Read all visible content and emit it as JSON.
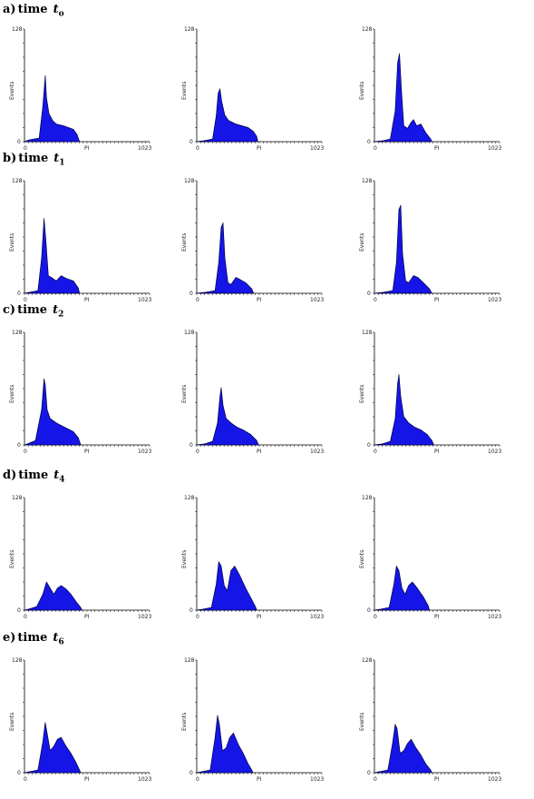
{
  "figure": {
    "ylabel": "Events",
    "xlabel": "PI",
    "y_top_tick": "128",
    "y_zero_tick": "0",
    "x_zero_tick": "0",
    "x_max_tick": "1023",
    "fill_color": "#1515e8",
    "edge_color": "#000044"
  },
  "rows": [
    {
      "letter": "a)",
      "time": "time",
      "t": "t",
      "sub": "o"
    },
    {
      "letter": "b)",
      "time": "time",
      "t": "t",
      "sub": "1"
    },
    {
      "letter": "c)",
      "time": "time",
      "t": "t",
      "sub": "2"
    },
    {
      "letter": "d)",
      "time": "time",
      "t": "t",
      "sub": "4"
    },
    {
      "letter": "e)",
      "time": "time",
      "t": "t",
      "sub": "6"
    }
  ],
  "chart_data": [
    {
      "type": "area",
      "row": 0,
      "col": 0,
      "xlim": [
        0,
        1023
      ],
      "ylim": [
        0,
        128
      ],
      "xlabel": "PI",
      "ylabel": "Events",
      "x": [
        0,
        40,
        120,
        150,
        170,
        180,
        200,
        230,
        260,
        320,
        400,
        430,
        450
      ],
      "y": [
        0,
        2,
        4,
        40,
        75,
        50,
        32,
        24,
        20,
        18,
        14,
        8,
        0
      ]
    },
    {
      "type": "area",
      "row": 0,
      "col": 1,
      "xlim": [
        0,
        1023
      ],
      "ylim": [
        0,
        128
      ],
      "xlabel": "PI",
      "ylabel": "Events",
      "x": [
        0,
        60,
        130,
        160,
        175,
        190,
        205,
        230,
        260,
        320,
        420,
        460,
        490,
        500
      ],
      "y": [
        0,
        1,
        3,
        30,
        55,
        60,
        45,
        30,
        24,
        20,
        16,
        12,
        6,
        0
      ]
    },
    {
      "type": "area",
      "row": 0,
      "col": 2,
      "xlim": [
        0,
        1023
      ],
      "ylim": [
        0,
        128
      ],
      "xlabel": "PI",
      "ylabel": "Events",
      "x": [
        0,
        70,
        130,
        170,
        190,
        205,
        220,
        240,
        270,
        300,
        320,
        345,
        380,
        420,
        460,
        470
      ],
      "y": [
        0,
        1,
        3,
        35,
        90,
        100,
        60,
        18,
        15,
        22,
        25,
        18,
        20,
        10,
        3,
        0
      ]
    },
    {
      "type": "area",
      "row": 1,
      "col": 0,
      "xlim": [
        0,
        1023
      ],
      "ylim": [
        0,
        128
      ],
      "xlabel": "PI",
      "ylabel": "Events",
      "x": [
        0,
        40,
        110,
        140,
        160,
        175,
        195,
        220,
        260,
        300,
        340,
        400,
        440,
        450
      ],
      "y": [
        0,
        1,
        3,
        40,
        85,
        60,
        20,
        18,
        14,
        20,
        17,
        14,
        6,
        0
      ]
    },
    {
      "type": "area",
      "row": 1,
      "col": 1,
      "xlim": [
        0,
        1023
      ],
      "ylim": [
        0,
        128
      ],
      "xlabel": "PI",
      "ylabel": "Events",
      "x": [
        0,
        70,
        150,
        180,
        200,
        215,
        230,
        255,
        280,
        320,
        350,
        400,
        450,
        465
      ],
      "y": [
        0,
        1,
        3,
        35,
        75,
        80,
        40,
        12,
        10,
        18,
        16,
        12,
        5,
        0
      ]
    },
    {
      "type": "area",
      "row": 1,
      "col": 2,
      "xlim": [
        0,
        1023
      ],
      "ylim": [
        0,
        128
      ],
      "xlabel": "PI",
      "ylabel": "Events",
      "x": [
        0,
        70,
        150,
        180,
        200,
        215,
        230,
        255,
        280,
        320,
        355,
        400,
        450,
        470
      ],
      "y": [
        0,
        1,
        3,
        35,
        95,
        100,
        45,
        14,
        12,
        20,
        18,
        12,
        5,
        0
      ]
    },
    {
      "type": "area",
      "row": 2,
      "col": 0,
      "xlim": [
        0,
        1023
      ],
      "ylim": [
        0,
        128
      ],
      "xlabel": "PI",
      "ylabel": "Events",
      "x": [
        0,
        20,
        90,
        140,
        160,
        170,
        185,
        210,
        260,
        330,
        400,
        440,
        460
      ],
      "y": [
        0,
        1,
        5,
        40,
        75,
        68,
        40,
        30,
        25,
        20,
        15,
        8,
        0
      ]
    },
    {
      "type": "area",
      "row": 2,
      "col": 1,
      "xlim": [
        0,
        1023
      ],
      "ylim": [
        0,
        128
      ],
      "xlabel": "PI",
      "ylabel": "Events",
      "x": [
        0,
        60,
        130,
        170,
        190,
        200,
        215,
        240,
        280,
        330,
        380,
        440,
        490,
        505
      ],
      "y": [
        0,
        1,
        4,
        25,
        55,
        65,
        45,
        30,
        25,
        20,
        17,
        12,
        5,
        0
      ]
    },
    {
      "type": "area",
      "row": 2,
      "col": 2,
      "xlim": [
        0,
        1023
      ],
      "ylim": [
        0,
        128
      ],
      "xlabel": "PI",
      "ylabel": "Events",
      "x": [
        0,
        60,
        130,
        170,
        190,
        200,
        215,
        240,
        280,
        330,
        380,
        430,
        470,
        485
      ],
      "y": [
        0,
        1,
        4,
        30,
        70,
        80,
        55,
        32,
        25,
        20,
        17,
        12,
        5,
        0
      ]
    },
    {
      "type": "area",
      "row": 3,
      "col": 0,
      "xlim": [
        0,
        1023
      ],
      "ylim": [
        0,
        128
      ],
      "xlabel": "PI",
      "ylabel": "Events",
      "x": [
        0,
        30,
        100,
        150,
        180,
        210,
        240,
        270,
        300,
        340,
        380,
        420,
        460,
        470
      ],
      "y": [
        0,
        1,
        4,
        18,
        32,
        25,
        18,
        25,
        28,
        24,
        18,
        10,
        3,
        0
      ]
    },
    {
      "type": "area",
      "row": 3,
      "col": 1,
      "xlim": [
        0,
        1023
      ],
      "ylim": [
        0,
        128
      ],
      "xlabel": "PI",
      "ylabel": "Events",
      "x": [
        0,
        50,
        120,
        160,
        180,
        200,
        225,
        250,
        280,
        310,
        350,
        400,
        450,
        480,
        490
      ],
      "y": [
        0,
        1,
        3,
        30,
        55,
        50,
        28,
        22,
        45,
        50,
        40,
        25,
        12,
        4,
        0
      ]
    },
    {
      "type": "area",
      "row": 3,
      "col": 2,
      "xlim": [
        0,
        1023
      ],
      "ylim": [
        0,
        128
      ],
      "xlabel": "PI",
      "ylabel": "Events",
      "x": [
        0,
        50,
        120,
        160,
        180,
        200,
        225,
        250,
        280,
        310,
        350,
        400,
        440,
        450
      ],
      "y": [
        0,
        1,
        3,
        30,
        50,
        45,
        25,
        18,
        28,
        32,
        25,
        15,
        5,
        0
      ]
    },
    {
      "type": "area",
      "row": 4,
      "col": 0,
      "xlim": [
        0,
        1023
      ],
      "ylim": [
        0,
        128
      ],
      "xlabel": "PI",
      "ylabel": "Events",
      "x": [
        0,
        40,
        110,
        150,
        170,
        185,
        210,
        240,
        270,
        300,
        340,
        380,
        420,
        450,
        460
      ],
      "y": [
        0,
        1,
        3,
        35,
        57,
        45,
        25,
        30,
        38,
        40,
        30,
        22,
        12,
        3,
        0
      ]
    },
    {
      "type": "area",
      "row": 4,
      "col": 1,
      "xlim": [
        0,
        1023
      ],
      "ylim": [
        0,
        128
      ],
      "xlabel": "PI",
      "ylabel": "Events",
      "x": [
        0,
        40,
        110,
        150,
        170,
        185,
        210,
        240,
        270,
        300,
        340,
        380,
        420,
        450,
        460
      ],
      "y": [
        0,
        1,
        3,
        40,
        65,
        55,
        25,
        28,
        40,
        45,
        32,
        22,
        10,
        3,
        0
      ]
    },
    {
      "type": "area",
      "row": 4,
      "col": 2,
      "xlim": [
        0,
        1023
      ],
      "ylim": [
        0,
        128
      ],
      "xlabel": "PI",
      "ylabel": "Events",
      "x": [
        0,
        40,
        110,
        150,
        170,
        185,
        210,
        240,
        270,
        300,
        340,
        380,
        420,
        460,
        470
      ],
      "y": [
        0,
        1,
        3,
        35,
        55,
        50,
        22,
        25,
        33,
        38,
        28,
        20,
        10,
        3,
        0
      ]
    }
  ]
}
